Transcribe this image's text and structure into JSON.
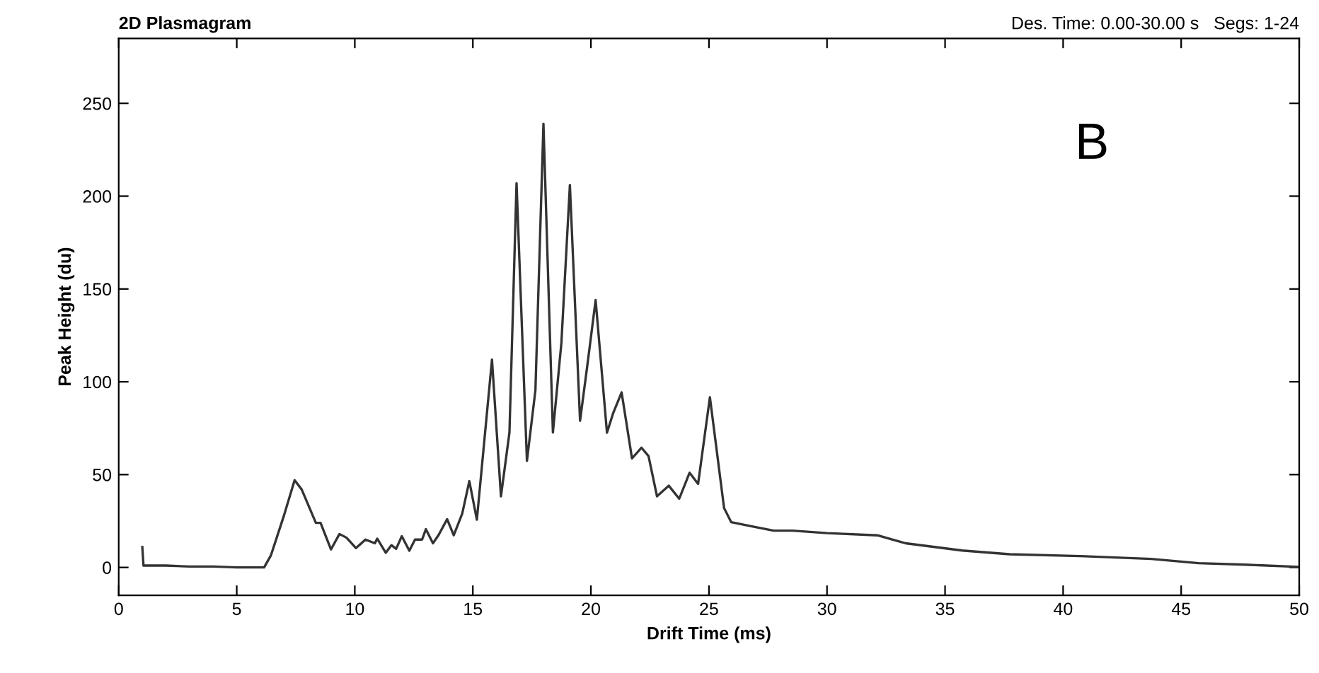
{
  "chart_data": {
    "type": "line",
    "title": "2D Plasmagram",
    "subtitle": "Des. Time: 0.00-30.00 s   Segs: 1-24",
    "xlabel": "Drift Time (ms)",
    "ylabel": "Peak Height (du)",
    "annotations": [
      "B"
    ],
    "x": [
      1.0,
      1.05,
      2.0,
      3.0,
      4.0,
      5.0,
      6.16,
      6.45,
      7.0,
      7.45,
      7.75,
      8.35,
      8.55,
      8.99,
      9.35,
      9.65,
      10.05,
      10.45,
      10.85,
      10.95,
      11.31,
      11.55,
      11.75,
      11.99,
      12.31,
      12.55,
      12.85,
      13.01,
      13.31,
      13.55,
      13.91,
      14.19,
      14.55,
      14.85,
      15.17,
      15.81,
      16.19,
      16.55,
      16.85,
      17.29,
      17.65,
      17.99,
      18.39,
      18.75,
      19.11,
      19.54,
      19.84,
      20.2,
      20.68,
      20.94,
      21.3,
      21.74,
      22.14,
      22.44,
      22.8,
      23.3,
      23.74,
      24.18,
      24.54,
      25.04,
      25.64,
      25.94,
      26.94,
      27.74,
      28.54,
      30.0,
      32.13,
      33.33,
      35.73,
      37.73,
      40.73,
      43.73,
      45.73,
      47.72,
      49.92
    ],
    "series": [
      {
        "color": "#333333",
        "values": [
          11,
          1,
          1,
          0.5,
          0.5,
          0,
          0,
          6.6,
          28,
          47,
          42,
          24,
          24,
          9.7,
          18,
          16,
          10.4,
          15,
          13,
          15.5,
          7.9,
          12,
          10,
          16.8,
          9,
          15,
          15,
          20.6,
          13,
          17.5,
          26,
          17.3,
          29,
          46.5,
          25.7,
          112,
          38.3,
          72.7,
          207,
          57.4,
          95.5,
          239,
          72.7,
          121,
          206,
          79,
          108,
          144,
          72.6,
          83,
          94.3,
          58.7,
          64.5,
          60,
          38.3,
          44,
          37,
          51,
          45,
          91.7,
          32,
          24.4,
          21.8,
          19.8,
          19.8,
          18.5,
          17.3,
          13,
          9.1,
          7.1,
          6.1,
          4.6,
          2.3,
          1.5,
          0.3
        ]
      }
    ],
    "xlim": [
      0,
      50
    ],
    "ylim": [
      -15,
      285
    ],
    "xticks": [
      0,
      5,
      10,
      15,
      20,
      25,
      30,
      35,
      40,
      45,
      50
    ],
    "yticks": [
      0,
      50,
      100,
      150,
      200,
      250
    ],
    "grid": false,
    "legend": false,
    "marker": "none",
    "line_style": "solid"
  }
}
